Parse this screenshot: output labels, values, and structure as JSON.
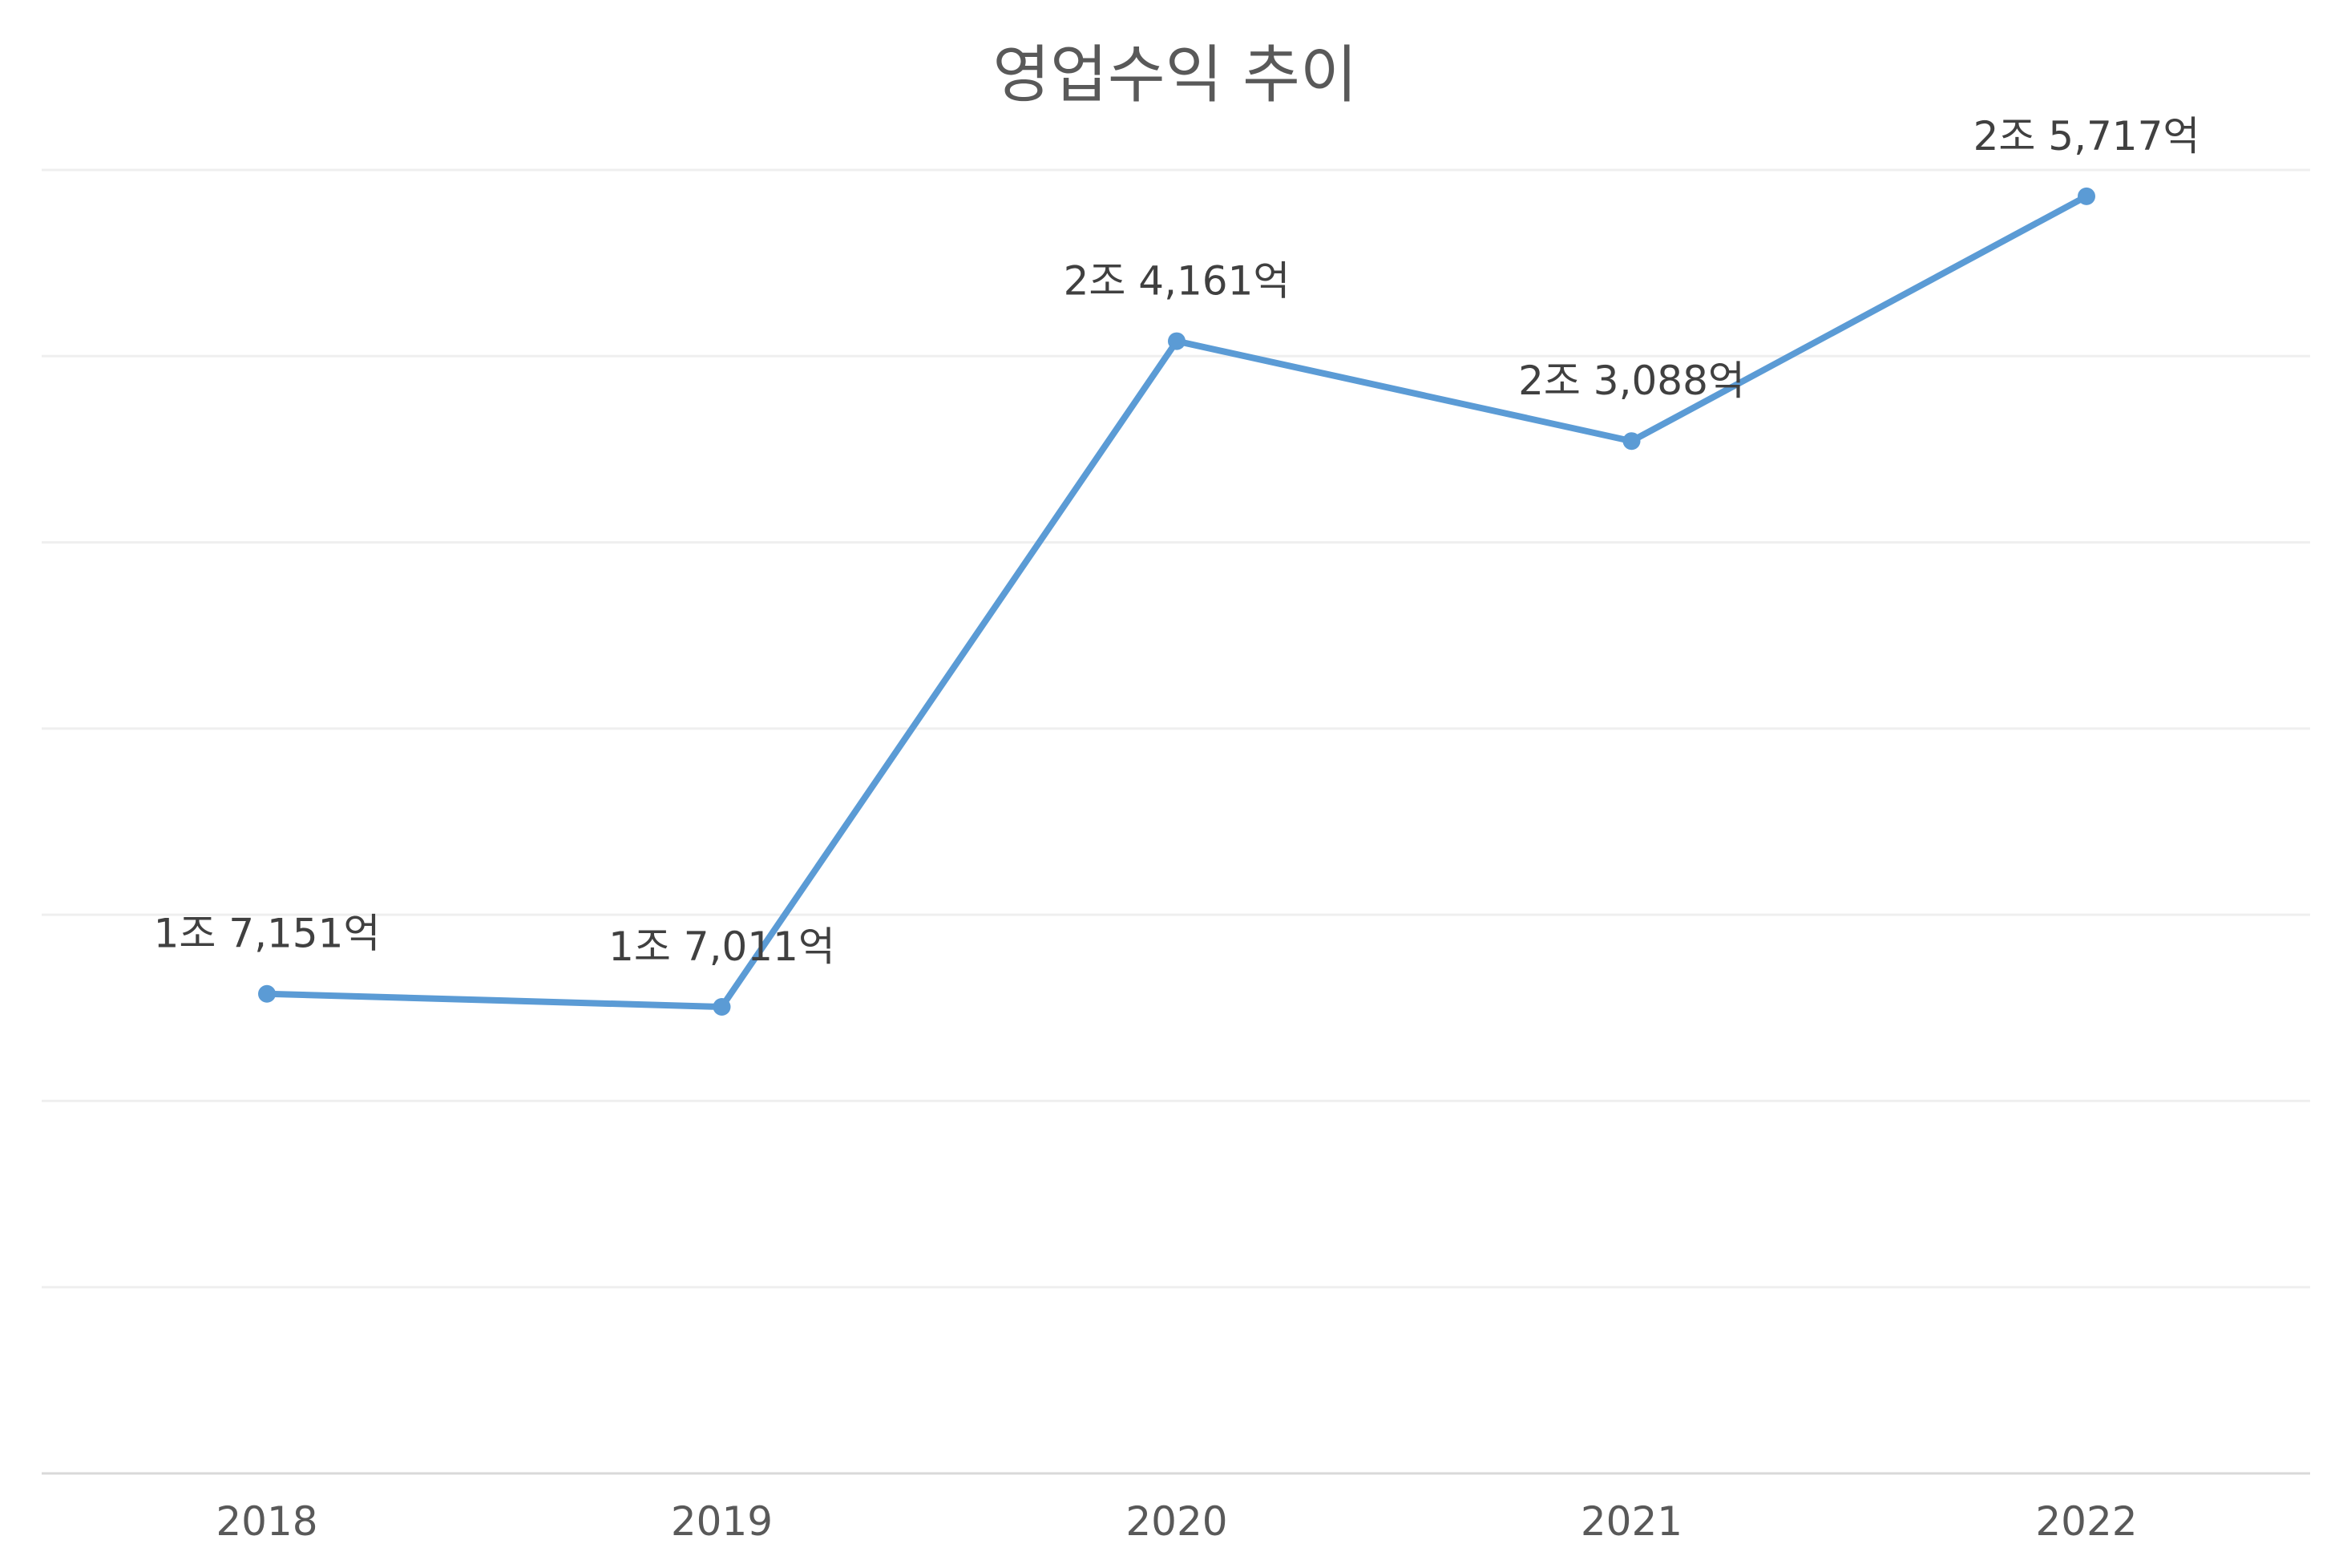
{
  "chart_data": {
    "type": "line",
    "title": "영업수익 추이",
    "xlabel": "",
    "ylabel": "",
    "categories": [
      "2018",
      "2019",
      "2020",
      "2021",
      "2022"
    ],
    "series": [
      {
        "values": [
          17151,
          17011,
          24161,
          23088,
          25717
        ],
        "labels": [
          "1조 7,151억",
          "1조 7,011억",
          "2조 4,161억",
          "2조 3,088억",
          "2조 5,717억"
        ]
      }
    ],
    "ylim": [
      12000,
      26000
    ],
    "y_gridlines": 7,
    "show_y_tick_labels": false,
    "grid": true,
    "legend": "none"
  },
  "colors": {
    "series": "#5b9bd5",
    "gridline": "#efefef",
    "axis": "#d9d9d9",
    "title": "#595959",
    "tick_label": "#595959",
    "data_label": "#404040"
  }
}
